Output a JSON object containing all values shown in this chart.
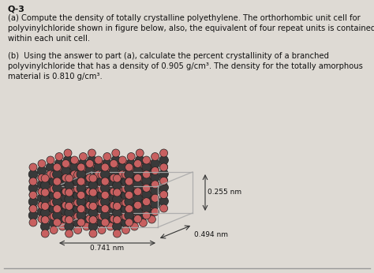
{
  "title_line": "Q-3",
  "text_a": "(a) Compute the density of totally crystalline polyethylene. The orthorhombic unit cell for\npolyvinylchloride shown in figure below, also, the equivalent of four repeat units is contained\nwithin each unit cell.",
  "text_b": "(b)  Using the answer to part (a), calculate the percent crystallinity of a branched\npolyvinylchloride that has a density of 0.905 g/cm³. The density for the totally amorphous\nmaterial is 0.810 g/cm³.",
  "dim1": "0.255 nm",
  "dim2": "0.741 nm",
  "dim3": "0.494 nm",
  "bg_color": "#dedad4",
  "dark_atom_color": "#3a3a3a",
  "light_atom_color": "#c86060",
  "bond_color": "#999999",
  "box_color": "#aaaaaa",
  "text_color": "#111111",
  "fontsize_main": 7.2,
  "fontsize_title": 8.0,
  "figsize": [
    4.74,
    3.46
  ],
  "dpi": 100
}
